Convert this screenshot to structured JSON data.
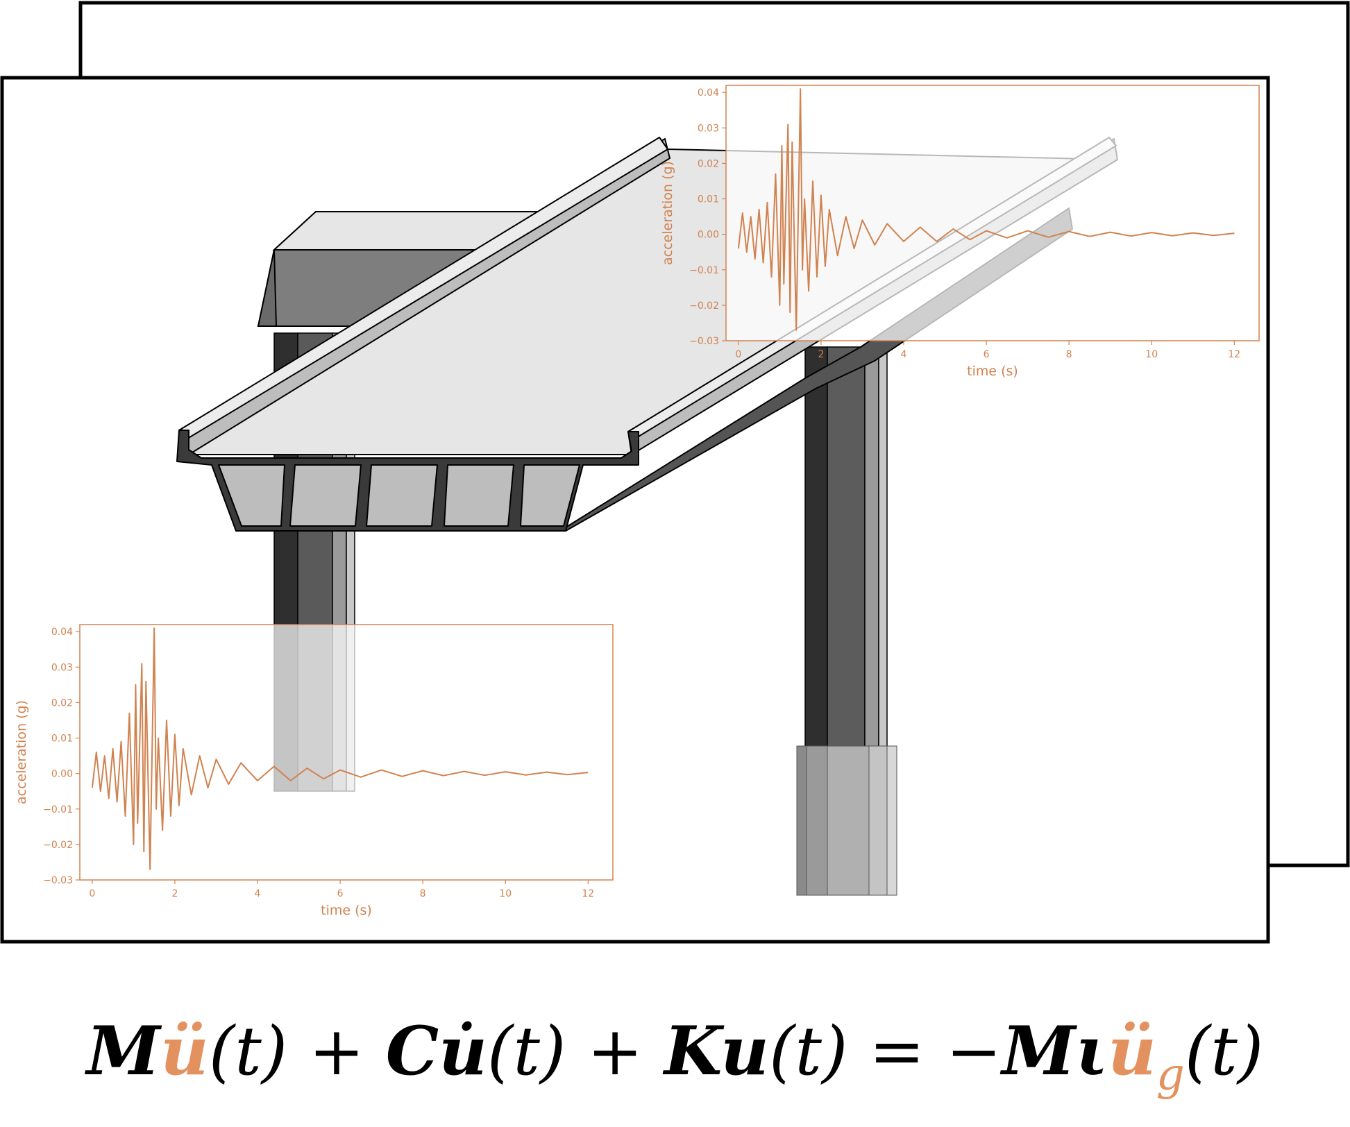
{
  "colors": {
    "accent": "#d0824f",
    "equation_highlight": "#e3925f",
    "frame": "#000000",
    "deck_light": "#e6e6e6",
    "deck_mid": "#bdbdbd",
    "pier_dark": "#4a4a4a",
    "pier_mid": "#5c5c5c",
    "cap_beam": "#7e7e7e"
  },
  "equation": {
    "M1": "M",
    "udd1": "ü",
    "t1": "(t)",
    "plus1": "+",
    "C": "C",
    "ud": "u̇",
    "t2": "(t)",
    "plus2": "+",
    "K": "K",
    "u": "u",
    "t3": "(t)",
    "equals": "=",
    "minus": "−",
    "M2": "M",
    "iota": "ι",
    "udd2": "ü",
    "sub_g": "g",
    "t4": "(t)"
  },
  "chart_data": [
    {
      "type": "line",
      "id": "top-right",
      "xlabel": "time (s)",
      "ylabel": "acceleration (g)",
      "xlim": [
        -0.3,
        12.6
      ],
      "ylim": [
        -0.03,
        0.042
      ],
      "xticks": [
        0,
        2,
        4,
        6,
        8,
        10,
        12
      ],
      "yticks": [
        -0.03,
        -0.02,
        -0.01,
        0.0,
        0.01,
        0.02,
        0.03,
        0.04
      ],
      "xtick_labels": [
        "0",
        "2",
        "4",
        "6",
        "8",
        "10",
        "12"
      ],
      "ytick_labels": [
        "−0.03",
        "−0.02",
        "−0.01",
        "0.00",
        "0.01",
        "0.02",
        "0.03",
        "0.04"
      ],
      "grid": false,
      "series": [
        {
          "x": [
            0,
            0.1,
            0.2,
            0.3,
            0.4,
            0.5,
            0.6,
            0.7,
            0.8,
            0.9,
            1.0,
            1.05,
            1.1,
            1.2,
            1.25,
            1.3,
            1.4,
            1.5,
            1.55,
            1.6,
            1.7,
            1.8,
            1.9,
            2.0,
            2.1,
            2.2,
            2.4,
            2.6,
            2.8,
            3.0,
            3.3,
            3.6,
            4.0,
            4.4,
            4.8,
            5.2,
            5.6,
            6.0,
            6.5,
            7.0,
            7.5,
            8.0,
            8.5,
            9.0,
            9.5,
            10.0,
            10.5,
            11.0,
            11.5,
            12.0
          ],
          "y": [
            -0.004,
            0.006,
            -0.005,
            0.005,
            -0.007,
            0.007,
            -0.008,
            0.009,
            -0.012,
            0.017,
            -0.02,
            0.025,
            -0.014,
            0.031,
            -0.022,
            0.026,
            -0.027,
            0.041,
            -0.01,
            0.01,
            -0.016,
            0.015,
            -0.012,
            0.011,
            -0.009,
            0.007,
            -0.006,
            0.005,
            -0.004,
            0.004,
            -0.003,
            0.003,
            -0.002,
            0.002,
            -0.002,
            0.0015,
            -0.0015,
            0.001,
            -0.001,
            0.001,
            -0.0008,
            0.0008,
            -0.0006,
            0.0006,
            -0.0005,
            0.0005,
            -0.0004,
            0.0004,
            -0.0003,
            0.0003
          ]
        }
      ]
    },
    {
      "type": "line",
      "id": "bottom-left",
      "xlabel": "time (s)",
      "ylabel": "acceleration (g)",
      "xlim": [
        -0.3,
        12.6
      ],
      "ylim": [
        -0.03,
        0.042
      ],
      "xticks": [
        0,
        2,
        4,
        6,
        8,
        10,
        12
      ],
      "yticks": [
        -0.03,
        -0.02,
        -0.01,
        0.0,
        0.01,
        0.02,
        0.03,
        0.04
      ],
      "xtick_labels": [
        "0",
        "2",
        "4",
        "6",
        "8",
        "10",
        "12"
      ],
      "ytick_labels": [
        "−0.03",
        "−0.02",
        "−0.01",
        "0.00",
        "0.01",
        "0.02",
        "0.03",
        "0.04"
      ],
      "grid": false,
      "series": [
        {
          "x": [
            0,
            0.1,
            0.2,
            0.3,
            0.4,
            0.5,
            0.6,
            0.7,
            0.8,
            0.9,
            1.0,
            1.05,
            1.1,
            1.2,
            1.25,
            1.3,
            1.4,
            1.5,
            1.55,
            1.6,
            1.7,
            1.8,
            1.9,
            2.0,
            2.1,
            2.2,
            2.4,
            2.6,
            2.8,
            3.0,
            3.3,
            3.6,
            4.0,
            4.4,
            4.8,
            5.2,
            5.6,
            6.0,
            6.5,
            7.0,
            7.5,
            8.0,
            8.5,
            9.0,
            9.5,
            10.0,
            10.5,
            11.0,
            11.5,
            12.0
          ],
          "y": [
            -0.004,
            0.006,
            -0.005,
            0.005,
            -0.007,
            0.007,
            -0.008,
            0.009,
            -0.012,
            0.017,
            -0.02,
            0.025,
            -0.014,
            0.031,
            -0.022,
            0.026,
            -0.027,
            0.041,
            -0.01,
            0.01,
            -0.016,
            0.015,
            -0.012,
            0.011,
            -0.009,
            0.007,
            -0.006,
            0.005,
            -0.004,
            0.004,
            -0.003,
            0.003,
            -0.002,
            0.002,
            -0.002,
            0.0015,
            -0.0015,
            0.001,
            -0.001,
            0.001,
            -0.0008,
            0.0008,
            -0.0006,
            0.0006,
            -0.0005,
            0.0005,
            -0.0004,
            0.0004,
            -0.0003,
            0.0003
          ]
        }
      ]
    }
  ]
}
